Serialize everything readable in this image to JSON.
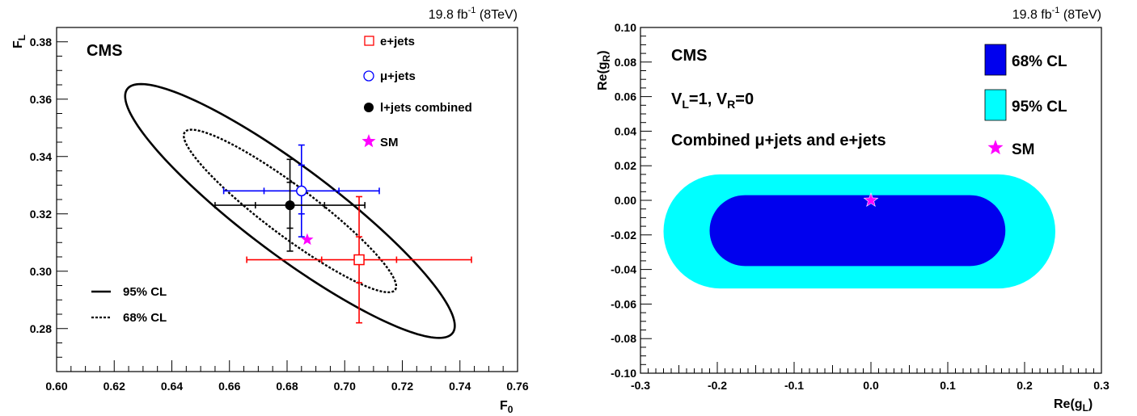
{
  "chart_data": [
    {
      "type": "scatter",
      "lumi": "19.8 fb",
      "lumi_sup": "-1",
      "lumi_energy": " (8TeV)",
      "experiment": "CMS",
      "xlabel": "F",
      "xlabel_sub": "0",
      "ylabel": "F",
      "ylabel_sub": "L",
      "xlim": [
        0.6,
        0.76
      ],
      "ylim": [
        0.265,
        0.385
      ],
      "xticks": [
        "0.60",
        "0.62",
        "0.64",
        "0.66",
        "0.68",
        "0.70",
        "0.72",
        "0.74",
        "0.76"
      ],
      "yticks": [
        "0.28",
        "0.30",
        "0.32",
        "0.34",
        "0.36",
        "0.38"
      ],
      "points": [
        {
          "name": "e+jets",
          "x": 0.705,
          "y": 0.304,
          "x_err_stat": [
            0.692,
            0.718
          ],
          "x_err_tot": [
            0.666,
            0.744
          ],
          "y_err_stat": [
            0.296,
            0.312
          ],
          "y_err_tot": [
            0.282,
            0.326
          ],
          "color": "#ff0000",
          "marker": "open-square"
        },
        {
          "name": "μ+jets",
          "x": 0.685,
          "y": 0.328,
          "x_err_stat": [
            0.672,
            0.698
          ],
          "x_err_tot": [
            0.658,
            0.712
          ],
          "y_err_stat": [
            0.32,
            0.337
          ],
          "y_err_tot": [
            0.312,
            0.344
          ],
          "color": "#0000ff",
          "marker": "open-circle"
        },
        {
          "name": "l+jets combined",
          "x": 0.681,
          "y": 0.323,
          "x_err_stat": [
            0.669,
            0.693
          ],
          "x_err_tot": [
            0.655,
            0.707
          ],
          "y_err_stat": [
            0.315,
            0.331
          ],
          "y_err_tot": [
            0.307,
            0.339
          ],
          "color": "#000000",
          "marker": "filled-circle"
        },
        {
          "name": "SM",
          "x": 0.687,
          "y": 0.311,
          "color": "#ff00ff",
          "marker": "star"
        }
      ],
      "contours": [
        {
          "name": "95% CL",
          "cx": 0.681,
          "cy": 0.321,
          "semi_major": 0.0707,
          "semi_minor": 0.0153,
          "angle_deg": -37,
          "style": "solid"
        },
        {
          "name": "68% CL",
          "cx": 0.681,
          "cy": 0.321,
          "semi_major": 0.0457,
          "semi_minor": 0.0086,
          "angle_deg": -37,
          "style": "dashed"
        }
      ],
      "legend": {
        "entries": [
          "e+jets",
          "μ+jets",
          "l+jets combined",
          "SM"
        ],
        "contour_entries": [
          "95% CL",
          "68% CL"
        ],
        "placement": "top-right"
      }
    },
    {
      "type": "heatmap",
      "lumi": "19.8 fb",
      "lumi_sup": "-1",
      "lumi_energy": " (8TeV)",
      "experiment": "CMS",
      "note1_main": "V",
      "note1_sub1": "L",
      "note1_mid": "=1, V",
      "note1_sub2": "R",
      "note1_end": "=0",
      "note2": "Combined μ+jets and e+jets",
      "xlabel": "Re(g",
      "xlabel_sub": "L",
      "xlabel_end": ")",
      "ylabel": "Re(g",
      "ylabel_sub": "R",
      "ylabel_end": ")",
      "xlim": [
        -0.3,
        0.3
      ],
      "ylim": [
        -0.1,
        0.1
      ],
      "xticks": [
        "-0.3",
        "-0.2",
        "-0.1",
        "0.0",
        "0.1",
        "0.2",
        "0.3"
      ],
      "yticks": [
        "-0.10",
        "-0.08",
        "-0.06",
        "-0.04",
        "-0.02",
        "0.00",
        "0.02",
        "0.04",
        "0.06",
        "0.08",
        "0.10"
      ],
      "regions": [
        {
          "name": "95% CL",
          "x": [
            -0.27,
            0.24
          ],
          "y": [
            -0.051,
            0.015
          ],
          "color": "#00ffff"
        },
        {
          "name": "68% CL",
          "x": [
            -0.21,
            0.175
          ],
          "y": [
            -0.038,
            0.003
          ],
          "color": "#0000ee"
        }
      ],
      "sm_point": {
        "name": "SM",
        "x": 0.0,
        "y": 0.0,
        "color": "#ff00ff"
      },
      "legend": {
        "entries": [
          "68% CL",
          "95% CL",
          "SM"
        ],
        "placement": "top-right"
      }
    }
  ]
}
